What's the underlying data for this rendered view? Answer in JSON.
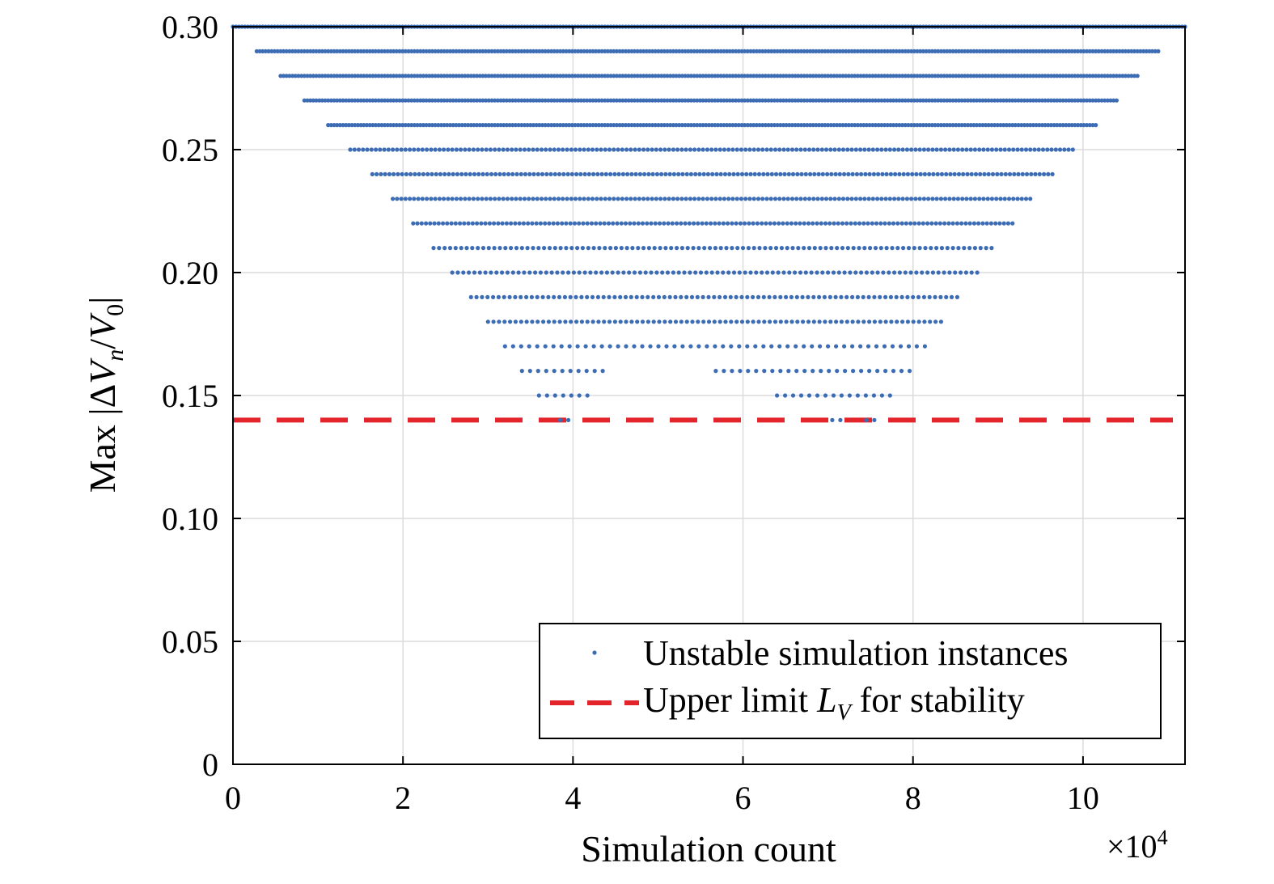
{
  "chart_data": {
    "type": "scatter",
    "xlabel": "Simulation count",
    "x_multiplier_label": "×10",
    "x_multiplier_exp": "4",
    "ylabel": {
      "prefix": "Max |Δ",
      "V1": "V",
      "n": "n",
      "slash": "/",
      "V2": "V",
      "zero": "0",
      "end": "|"
    },
    "xlim": [
      0,
      11.2
    ],
    "ylim": [
      0,
      0.3
    ],
    "xticks": [
      0,
      2,
      4,
      6,
      8,
      10
    ],
    "xtick_labels": [
      "0",
      "2",
      "4",
      "6",
      "8",
      "10"
    ],
    "yticks": [
      0,
      0.05,
      0.1,
      0.15,
      0.2,
      0.25,
      0.3
    ],
    "ytick_labels": [
      "0",
      "0.05",
      "0.10",
      "0.15",
      "0.20",
      "0.25",
      "0.30"
    ],
    "grid": true,
    "legend": {
      "placement": "bottom-right",
      "entries": [
        {
          "label": "Unstable simulation instances"
        },
        {
          "label_pre": "Upper limit ",
          "label_L": "L",
          "label_sub": "V",
          "label_post": " for stability"
        }
      ]
    },
    "colors": {
      "scatter": "#3c6cb4",
      "limit": "#e4242b",
      "grid": "#dcdcdc"
    },
    "series": [
      {
        "name": "Unstable simulation instances",
        "kind": "scatter",
        "rows": [
          {
            "y": 0.3,
            "segments": [
              [
                0.0,
                11.2
              ]
            ]
          },
          {
            "y": 0.29,
            "segments": [
              [
                0.28,
                10.9
              ]
            ]
          },
          {
            "y": 0.28,
            "segments": [
              [
                0.56,
                10.65
              ]
            ]
          },
          {
            "y": 0.27,
            "segments": [
              [
                0.84,
                10.4
              ]
            ]
          },
          {
            "y": 0.26,
            "segments": [
              [
                1.12,
                10.15
              ]
            ]
          },
          {
            "y": 0.25,
            "segments": [
              [
                1.38,
                9.9
              ]
            ]
          },
          {
            "y": 0.24,
            "segments": [
              [
                1.64,
                9.65
              ]
            ]
          },
          {
            "y": 0.23,
            "segments": [
              [
                1.88,
                9.42
              ]
            ]
          },
          {
            "y": 0.22,
            "segments": [
              [
                2.12,
                9.2
              ]
            ]
          },
          {
            "y": 0.21,
            "segments": [
              [
                2.36,
                8.98
              ]
            ]
          },
          {
            "y": 0.2,
            "segments": [
              [
                2.58,
                8.76
              ]
            ]
          },
          {
            "y": 0.19,
            "segments": [
              [
                2.8,
                8.56
              ]
            ]
          },
          {
            "y": 0.18,
            "segments": [
              [
                3.0,
                8.36
              ]
            ]
          },
          {
            "y": 0.17,
            "segments": [
              [
                3.2,
                8.16
              ]
            ]
          },
          {
            "y": 0.16,
            "segments": [
              [
                3.4,
                4.36
              ],
              [
                5.68,
                7.96
              ]
            ]
          },
          {
            "y": 0.15,
            "segments": [
              [
                3.6,
                4.2
              ],
              [
                6.4,
                7.8
              ]
            ]
          },
          {
            "y": 0.14,
            "segments": [
              [
                3.85,
                4.0
              ],
              [
                7.05,
                7.2
              ],
              [
                7.45,
                7.6
              ]
            ]
          }
        ]
      },
      {
        "name": "Upper limit L_V for stability",
        "kind": "hline",
        "y": 0.14
      }
    ]
  }
}
